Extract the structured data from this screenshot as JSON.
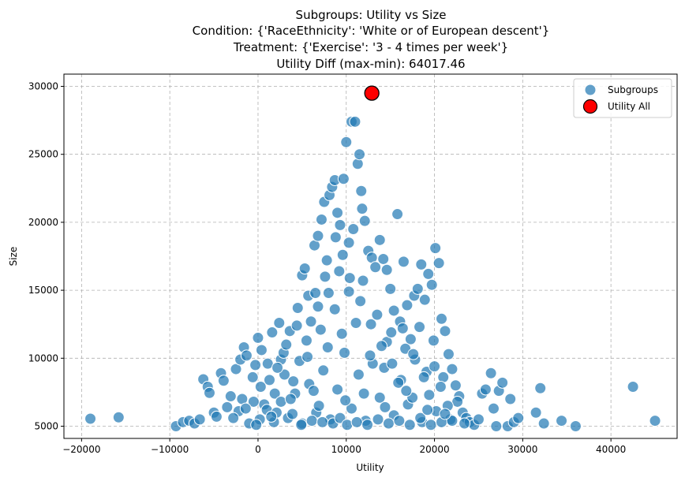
{
  "chart_data": {
    "type": "scatter",
    "title_lines": [
      "Subgroups: Utility vs Size",
      "Condition: {'RaceEthnicity': 'White or of European descent'}",
      "Treatment: {'Exercise': '3 - 4 times per week'}",
      "Utility Diff (max-min): 64017.46"
    ],
    "xlabel": "Utility",
    "ylabel": "Size",
    "xlim": [
      -22000,
      47500
    ],
    "ylim": [
      4100,
      30900
    ],
    "x_ticks": [
      -20000,
      -10000,
      0,
      10000,
      20000,
      30000,
      40000
    ],
    "y_ticks": [
      5000,
      10000,
      15000,
      20000,
      25000,
      30000
    ],
    "grid": true,
    "legend_position": "top-right",
    "colors": {
      "subgroups": "#1f77b4",
      "utility_all": "#ff0000"
    },
    "series": [
      {
        "name": "Subgroups",
        "points": [
          [
            -19000,
            5550
          ],
          [
            -15800,
            5650
          ],
          [
            -9300,
            5000
          ],
          [
            -8500,
            5300
          ],
          [
            -7800,
            5400
          ],
          [
            -7200,
            5200
          ],
          [
            -6600,
            5500
          ],
          [
            -6200,
            8450
          ],
          [
            -5700,
            7900
          ],
          [
            -5500,
            7450
          ],
          [
            -5000,
            6000
          ],
          [
            -4700,
            5700
          ],
          [
            -4200,
            8900
          ],
          [
            -3900,
            8350
          ],
          [
            -3500,
            6400
          ],
          [
            -3100,
            7200
          ],
          [
            -2500,
            9200
          ],
          [
            -2200,
            6100
          ],
          [
            -2000,
            9900
          ],
          [
            -1800,
            7000
          ],
          [
            -1600,
            10800
          ],
          [
            -1300,
            10200
          ],
          [
            -1000,
            5200
          ],
          [
            -600,
            8600
          ],
          [
            -300,
            9500
          ],
          [
            0,
            11500
          ],
          [
            400,
            10600
          ],
          [
            700,
            6600
          ],
          [
            1100,
            9600
          ],
          [
            1600,
            11900
          ],
          [
            1900,
            7400
          ],
          [
            2400,
            12600
          ],
          [
            2600,
            9900
          ],
          [
            3000,
            8800
          ],
          [
            3600,
            12000
          ],
          [
            4000,
            8300
          ],
          [
            4500,
            13700
          ],
          [
            5000,
            16100
          ],
          [
            5300,
            16600
          ],
          [
            5700,
            14600
          ],
          [
            6000,
            12700
          ],
          [
            6400,
            18300
          ],
          [
            6800,
            19000
          ],
          [
            7200,
            20200
          ],
          [
            7500,
            21500
          ],
          [
            7800,
            17200
          ],
          [
            8100,
            22000
          ],
          [
            8400,
            22600
          ],
          [
            8700,
            23100
          ],
          [
            9000,
            20700
          ],
          [
            9300,
            19800
          ],
          [
            9700,
            23200
          ],
          [
            10000,
            25900
          ],
          [
            10300,
            18500
          ],
          [
            10600,
            27400
          ],
          [
            11000,
            27400
          ],
          [
            11300,
            24300
          ],
          [
            11500,
            25000
          ],
          [
            11700,
            22300
          ],
          [
            12100,
            20100
          ],
          [
            12500,
            17900
          ],
          [
            12900,
            17400
          ],
          [
            13300,
            16700
          ],
          [
            13800,
            18700
          ],
          [
            14200,
            17300
          ],
          [
            14600,
            16500
          ],
          [
            15000,
            15100
          ],
          [
            15400,
            13500
          ],
          [
            15800,
            20600
          ],
          [
            16100,
            12700
          ],
          [
            16500,
            17100
          ],
          [
            16900,
            13900
          ],
          [
            17300,
            11400
          ],
          [
            17700,
            14600
          ],
          [
            18100,
            15100
          ],
          [
            18500,
            16900
          ],
          [
            18900,
            14300
          ],
          [
            19300,
            16200
          ],
          [
            19700,
            15400
          ],
          [
            20100,
            18100
          ],
          [
            20500,
            17000
          ],
          [
            20800,
            12900
          ],
          [
            21200,
            12000
          ],
          [
            21600,
            10300
          ],
          [
            22000,
            9200
          ],
          [
            22400,
            8000
          ],
          [
            22800,
            7200
          ],
          [
            23200,
            6000
          ],
          [
            23600,
            5600
          ],
          [
            24000,
            5300
          ],
          [
            24500,
            5100
          ],
          [
            25000,
            5500
          ],
          [
            25400,
            7400
          ],
          [
            25800,
            7700
          ],
          [
            26400,
            8900
          ],
          [
            26700,
            6300
          ],
          [
            27000,
            5000
          ],
          [
            27300,
            7600
          ],
          [
            27700,
            8200
          ],
          [
            28300,
            5000
          ],
          [
            28600,
            7000
          ],
          [
            29000,
            5300
          ],
          [
            29500,
            5600
          ],
          [
            31500,
            6000
          ],
          [
            32000,
            7800
          ],
          [
            32400,
            5200
          ],
          [
            34400,
            5400
          ],
          [
            36000,
            5000
          ],
          [
            42500,
            7900
          ],
          [
            45000,
            5400
          ],
          [
            200,
            5500
          ],
          [
            1000,
            6200
          ],
          [
            1800,
            5300
          ],
          [
            2600,
            6800
          ],
          [
            3400,
            5600
          ],
          [
            4200,
            7400
          ],
          [
            5000,
            5200
          ],
          [
            5800,
            8100
          ],
          [
            6600,
            6000
          ],
          [
            7400,
            9100
          ],
          [
            8200,
            5500
          ],
          [
            9000,
            7700
          ],
          [
            9800,
            10400
          ],
          [
            10600,
            6300
          ],
          [
            11400,
            8800
          ],
          [
            12200,
            5400
          ],
          [
            13000,
            9600
          ],
          [
            13800,
            7100
          ],
          [
            14600,
            11200
          ],
          [
            15400,
            5800
          ],
          [
            16200,
            8400
          ],
          [
            17000,
            6600
          ],
          [
            17800,
            9900
          ],
          [
            18600,
            5300
          ],
          [
            19400,
            7300
          ],
          [
            20200,
            6100
          ],
          [
            21000,
            8600
          ],
          [
            21800,
            5500
          ],
          [
            22600,
            6800
          ],
          [
            23400,
            5200
          ],
          [
            -500,
            6800
          ],
          [
            300,
            7900
          ],
          [
            1300,
            8400
          ],
          [
            2100,
            6000
          ],
          [
            2900,
            10400
          ],
          [
            3700,
            7000
          ],
          [
            4700,
            9800
          ],
          [
            5500,
            11300
          ],
          [
            6300,
            7600
          ],
          [
            7100,
            12100
          ],
          [
            7900,
            10800
          ],
          [
            8700,
            13600
          ],
          [
            9500,
            11800
          ],
          [
            10300,
            14900
          ],
          [
            11100,
            12600
          ],
          [
            11900,
            15700
          ],
          [
            12700,
            10200
          ],
          [
            13500,
            13200
          ],
          [
            14300,
            9300
          ],
          [
            15100,
            11900
          ],
          [
            15900,
            8200
          ],
          [
            16700,
            10700
          ],
          [
            17500,
            7100
          ],
          [
            18300,
            12300
          ],
          [
            19100,
            9000
          ],
          [
            19900,
            11300
          ],
          [
            20700,
            7900
          ],
          [
            21500,
            6500
          ],
          [
            4900,
            5100
          ],
          [
            6100,
            5400
          ],
          [
            7300,
            5300
          ],
          [
            8500,
            5200
          ],
          [
            9300,
            5600
          ],
          [
            10100,
            5100
          ],
          [
            11200,
            5300
          ],
          [
            12400,
            5100
          ],
          [
            13600,
            5500
          ],
          [
            14800,
            5200
          ],
          [
            16000,
            5400
          ],
          [
            17200,
            5100
          ],
          [
            18400,
            5600
          ],
          [
            19600,
            5100
          ],
          [
            20800,
            5300
          ],
          [
            22000,
            5400
          ],
          [
            2200,
            9300
          ],
          [
            3200,
            11000
          ],
          [
            4400,
            12400
          ],
          [
            5600,
            10100
          ],
          [
            6800,
            13800
          ],
          [
            8000,
            14800
          ],
          [
            9200,
            16400
          ],
          [
            10400,
            15900
          ],
          [
            11600,
            14200
          ],
          [
            12800,
            12500
          ],
          [
            14000,
            10900
          ],
          [
            15200,
            9600
          ],
          [
            16400,
            12200
          ],
          [
            17600,
            10300
          ],
          [
            18800,
            8600
          ],
          [
            20000,
            9400
          ],
          [
            -2800,
            5600
          ],
          [
            -1400,
            6300
          ],
          [
            -200,
            5100
          ],
          [
            1500,
            5700
          ],
          [
            3900,
            5900
          ],
          [
            6900,
            6500
          ],
          [
            9900,
            6900
          ],
          [
            12000,
            7400
          ],
          [
            14400,
            6400
          ],
          [
            16800,
            7600
          ],
          [
            19200,
            6200
          ],
          [
            21200,
            5900
          ],
          [
            8800,
            18900
          ],
          [
            9600,
            17600
          ],
          [
            10800,
            19500
          ],
          [
            7600,
            16000
          ],
          [
            11800,
            21000
          ],
          [
            6500,
            14800
          ]
        ]
      },
      {
        "name": "Utility All",
        "points": [
          [
            12900,
            29500
          ]
        ]
      }
    ]
  }
}
